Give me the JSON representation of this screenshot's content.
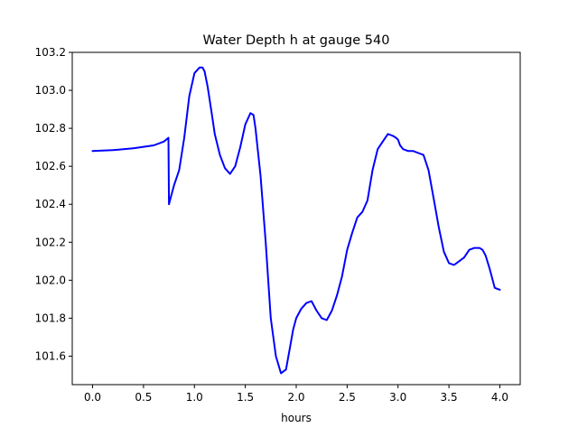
{
  "chart_data": {
    "type": "line",
    "title": "Water Depth h at gauge 540",
    "xlabel": "hours",
    "ylabel": "",
    "xlim": [
      -0.2,
      4.2
    ],
    "ylim": [
      101.45,
      103.2
    ],
    "xticks": [
      0.0,
      0.5,
      1.0,
      1.5,
      2.0,
      2.5,
      3.0,
      3.5,
      4.0
    ],
    "xtick_labels": [
      "0.0",
      "0.5",
      "1.0",
      "1.5",
      "2.0",
      "2.5",
      "3.0",
      "3.5",
      "4.0"
    ],
    "yticks": [
      101.6,
      101.8,
      102.0,
      102.2,
      102.4,
      102.6,
      102.8,
      103.0,
      103.2
    ],
    "ytick_labels": [
      "101.6",
      "101.8",
      "102.0",
      "102.2",
      "102.4",
      "102.6",
      "102.8",
      "103.0",
      "103.2"
    ],
    "grid": false,
    "series": [
      {
        "color": "#0000ff",
        "x": [
          0.0,
          0.2,
          0.4,
          0.6,
          0.7,
          0.745,
          0.75,
          0.77,
          0.8,
          0.85,
          0.9,
          0.95,
          1.0,
          1.05,
          1.08,
          1.1,
          1.13,
          1.17,
          1.2,
          1.25,
          1.3,
          1.35,
          1.4,
          1.45,
          1.5,
          1.55,
          1.58,
          1.6,
          1.65,
          1.7,
          1.75,
          1.8,
          1.85,
          1.9,
          1.93,
          1.97,
          2.0,
          2.05,
          2.1,
          2.15,
          2.2,
          2.25,
          2.3,
          2.35,
          2.4,
          2.45,
          2.5,
          2.55,
          2.6,
          2.65,
          2.7,
          2.75,
          2.8,
          2.85,
          2.9,
          2.95,
          2.98,
          3.0,
          3.02,
          3.05,
          3.1,
          3.15,
          3.2,
          3.25,
          3.3,
          3.35,
          3.4,
          3.45,
          3.5,
          3.55,
          3.6,
          3.65,
          3.7,
          3.75,
          3.8,
          3.83,
          3.86,
          3.9,
          3.95,
          4.0
        ],
        "y": [
          102.68,
          102.685,
          102.695,
          102.71,
          102.73,
          102.75,
          102.4,
          102.44,
          102.5,
          102.58,
          102.75,
          102.97,
          103.09,
          103.12,
          103.12,
          103.1,
          103.02,
          102.88,
          102.77,
          102.66,
          102.59,
          102.56,
          102.6,
          102.7,
          102.82,
          102.88,
          102.87,
          102.8,
          102.55,
          102.2,
          101.8,
          101.6,
          101.51,
          101.53,
          101.62,
          101.74,
          101.8,
          101.85,
          101.88,
          101.89,
          101.84,
          101.8,
          101.79,
          101.84,
          101.92,
          102.02,
          102.16,
          102.25,
          102.33,
          102.36,
          102.42,
          102.58,
          102.69,
          102.73,
          102.77,
          102.76,
          102.75,
          102.74,
          102.71,
          102.69,
          102.68,
          102.68,
          102.67,
          102.66,
          102.58,
          102.43,
          102.28,
          102.15,
          102.09,
          102.08,
          102.1,
          102.12,
          102.16,
          102.17,
          102.17,
          102.16,
          102.13,
          102.06,
          101.96,
          101.95
        ]
      }
    ]
  }
}
